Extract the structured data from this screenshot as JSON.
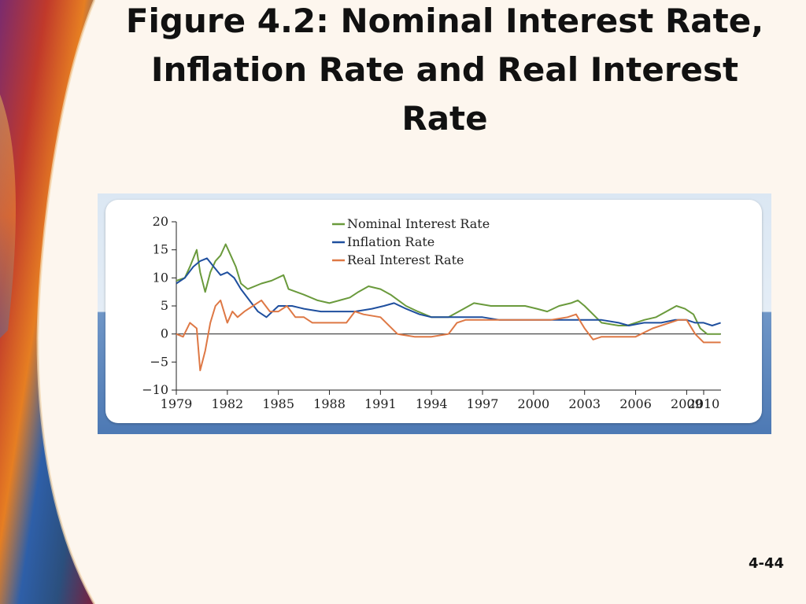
{
  "slide": {
    "title_lines": [
      "Figure 4.2: Nominal Interest Rate,",
      "Inflation Rate and Real Interest",
      "Rate"
    ],
    "number": "4-44"
  },
  "chart_data": {
    "type": "line",
    "title": "",
    "xlabel": "",
    "ylabel": "",
    "xlim": [
      1979,
      2010
    ],
    "ylim": [
      -10,
      20
    ],
    "x_ticks": [
      1979,
      1982,
      1985,
      1988,
      1991,
      1994,
      1997,
      2000,
      2003,
      2006,
      2009,
      2010
    ],
    "x_tick_labels": [
      "1979",
      "1982",
      "1985",
      "1988",
      "1991",
      "1994",
      "1997",
      "2000",
      "2003",
      "2006",
      "2009",
      "2010"
    ],
    "y_ticks": [
      20,
      15,
      10,
      5,
      0,
      -5,
      -10
    ],
    "y_tick_labels": [
      "20",
      "15",
      "10",
      "5",
      "0",
      "−5",
      "−10"
    ],
    "zero_line": true,
    "grid": false,
    "legend_position": "top-center",
    "series": [
      {
        "name": "Nominal Interest Rate",
        "color": "#6a9a3c",
        "x": [
          1979,
          1979.5,
          1979.8,
          1980.2,
          1980.4,
          1980.7,
          1981,
          1981.3,
          1981.6,
          1981.9,
          1982.2,
          1982.5,
          1982.8,
          1983.2,
          1984,
          1984.6,
          1985.3,
          1985.6,
          1986.5,
          1987.3,
          1988,
          1988.6,
          1989.2,
          1989.7,
          1990.3,
          1991,
          1991.6,
          1992.5,
          1993.2,
          1994,
          1994.6,
          1995,
          1995.6,
          1996.5,
          1997.5,
          1998.5,
          1999.5,
          2000.2,
          2000.8,
          2001.5,
          2002.2,
          2002.6,
          2003,
          2004,
          2005,
          2005.5,
          2006,
          2006.5,
          2007.2,
          2007.8,
          2008.4,
          2008.9,
          2009.4,
          2009.8,
          2010.2,
          2010.6,
          2011
        ],
        "y": [
          9.5,
          10,
          12,
          15,
          11,
          7.5,
          11,
          13,
          14,
          16,
          14,
          12,
          9,
          8,
          9,
          9.5,
          10.5,
          8,
          7,
          6,
          5.5,
          6,
          6.5,
          7.5,
          8.5,
          8,
          7,
          5,
          4,
          3,
          3,
          3,
          4,
          5.5,
          5,
          5,
          5,
          4.5,
          4,
          5,
          5.5,
          6,
          5,
          2,
          1.5,
          1.5,
          2,
          2.5,
          3,
          4,
          5,
          4.5,
          3.5,
          1,
          0,
          0,
          0
        ]
      },
      {
        "name": "Inflation Rate",
        "color": "#1f4f9e",
        "x": [
          1979,
          1979.5,
          1980,
          1980.4,
          1980.8,
          1981.2,
          1981.6,
          1982,
          1982.4,
          1982.8,
          1983.3,
          1983.8,
          1984.3,
          1985,
          1985.8,
          1986.5,
          1987.5,
          1988.5,
          1989.5,
          1990.5,
          1991.2,
          1991.8,
          1992.5,
          1993.3,
          1994,
          1995,
          1996,
          1997,
          1998,
          1999,
          2000,
          2001,
          2002,
          2003,
          2004,
          2005,
          2005.6,
          2006.5,
          2007.5,
          2008.3,
          2009,
          2009.5,
          2010,
          2010.5,
          2011
        ],
        "y": [
          9,
          10,
          12,
          13,
          13.5,
          12,
          10.5,
          11,
          10,
          8,
          6,
          4,
          3,
          5,
          5,
          4.5,
          4,
          4,
          4,
          4.5,
          5,
          5.5,
          4.5,
          3.5,
          3,
          3,
          3,
          3,
          2.5,
          2.5,
          2.5,
          2.5,
          2.5,
          2.5,
          2.5,
          2,
          1.5,
          2,
          2,
          2.5,
          2.5,
          2,
          2,
          1.5,
          2
        ]
      },
      {
        "name": "Real Interest Rate",
        "color": "#de7845",
        "x": [
          1979,
          1979.4,
          1979.8,
          1980.2,
          1980.4,
          1980.7,
          1981,
          1981.3,
          1981.6,
          1982,
          1982.3,
          1982.6,
          1983,
          1983.5,
          1984,
          1984.5,
          1985,
          1985.5,
          1986,
          1986.5,
          1987,
          1988,
          1989,
          1989.5,
          1990,
          1991,
          1992,
          1993,
          1994,
          1995,
          1995.5,
          1996,
          1997,
          1998,
          1999,
          2000,
          2001,
          2002,
          2002.5,
          2003,
          2003.5,
          2004,
          2005,
          2006,
          2007,
          2008,
          2008.5,
          2009,
          2009.5,
          2010,
          2010.5,
          2011
        ],
        "y": [
          0,
          -0.5,
          2,
          1,
          -6.5,
          -3,
          2,
          5,
          6,
          2,
          4,
          3,
          4,
          5,
          6,
          4,
          4,
          5,
          3,
          3,
          2,
          2,
          2,
          4,
          3.5,
          3,
          0,
          -0.5,
          -0.5,
          0,
          2,
          2.5,
          2.5,
          2.5,
          2.5,
          2.5,
          2.5,
          3,
          3.5,
          1,
          -1,
          -0.5,
          -0.5,
          -0.5,
          1,
          2,
          2.5,
          2.5,
          0,
          -1.5,
          -1.5,
          -1.5
        ]
      }
    ]
  }
}
